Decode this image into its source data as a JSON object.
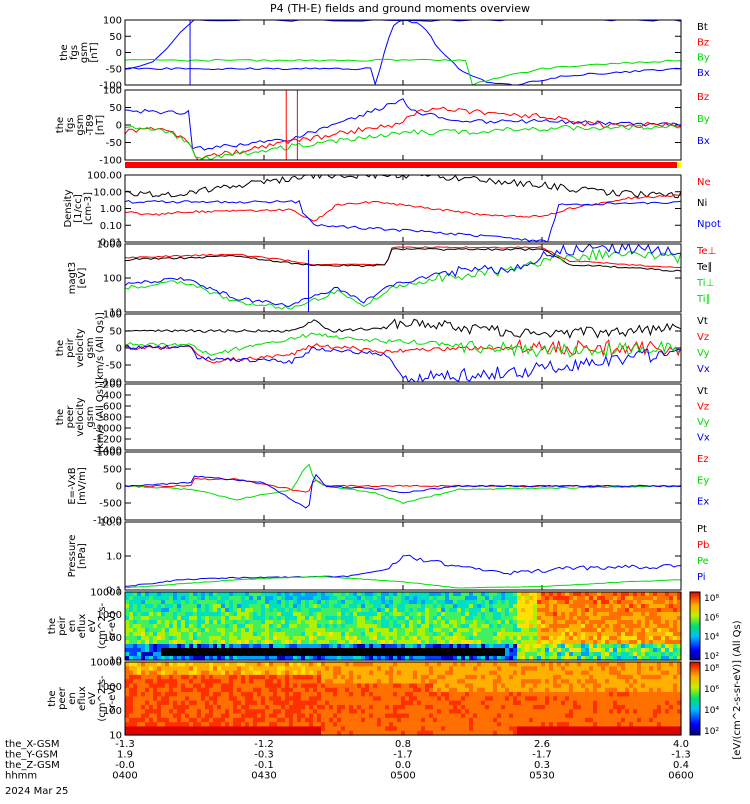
{
  "title": "P4 (TH-E) fields and ground moments overview",
  "colors": {
    "black": "#000000",
    "red": "#ff0000",
    "green": "#00dd00",
    "blue": "#0000ff"
  },
  "panels": [
    {
      "id": "fgs",
      "ylabel": [
        "the",
        "fgs",
        "gsm",
        "[nT]"
      ],
      "yticks": [
        "100",
        "50",
        "0",
        "-50",
        "-100"
      ],
      "legend": [
        {
          "text": "Bt",
          "color": "#000000"
        },
        {
          "text": "Bz",
          "color": "#ff0000"
        },
        {
          "text": "By",
          "color": "#00dd00"
        },
        {
          "text": "Bx",
          "color": "#0000ff"
        }
      ]
    },
    {
      "id": "fgs_dc",
      "ylabel": [
        "the",
        "fgs",
        "gsm",
        "-T89",
        "[nT]"
      ],
      "yticks": [
        "100",
        "50",
        "0",
        "-50",
        "-100"
      ],
      "legend": [
        {
          "text": "Bz",
          "color": "#ff0000"
        },
        {
          "text": "By",
          "color": "#00dd00"
        },
        {
          "text": "Bx",
          "color": "#0000ff"
        }
      ]
    },
    {
      "id": "density",
      "ylabel": [
        "Density",
        "[1/cc]",
        "[cm-3]"
      ],
      "yticks": [
        "100.00",
        "10.00",
        "1.00",
        "0.10",
        "0.01"
      ],
      "legend": [
        {
          "text": "Ne",
          "color": "#ff0000"
        },
        {
          "text": "Ni",
          "color": "#000000"
        },
        {
          "text": "Npot",
          "color": "#0000ff"
        }
      ]
    },
    {
      "id": "temp",
      "ylabel": [
        "magt3",
        "[eV]"
      ],
      "yticks": [
        "1000",
        "100",
        "10"
      ],
      "legend": [
        {
          "text": "Te⊥",
          "color": "#ff0000"
        },
        {
          "text": "Te∥",
          "color": "#000000"
        },
        {
          "text": "Ti⊥",
          "color": "#00dd00"
        },
        {
          "text": "Ti∥",
          "color": "#00dd00"
        }
      ]
    },
    {
      "id": "peir_vel",
      "ylabel": [
        "the",
        "peir",
        "velocity",
        "gsm",
        "[km/s (All Qs)]"
      ],
      "yticks": [
        "100",
        "50",
        "0",
        "-50",
        "-100"
      ],
      "legend": [
        {
          "text": "Vt",
          "color": "#000000"
        },
        {
          "text": "Vz",
          "color": "#ff0000"
        },
        {
          "text": "Vy",
          "color": "#00dd00"
        },
        {
          "text": "Vx",
          "color": "#0000ff"
        }
      ]
    },
    {
      "id": "peer_vel",
      "ylabel": [
        "the",
        "peer",
        "velocity",
        "gsm",
        "[km/s (All Qs)]"
      ],
      "yticks": [
        "-200",
        "-400",
        "-600",
        "-800",
        "-1000",
        "-1200",
        "-1400"
      ],
      "legend": [
        {
          "text": "Vt",
          "color": "#000000"
        },
        {
          "text": "Vz",
          "color": "#ff0000"
        },
        {
          "text": "Vy",
          "color": "#00dd00"
        },
        {
          "text": "Vx",
          "color": "#0000ff"
        }
      ]
    },
    {
      "id": "efield",
      "ylabel": [
        "E=-VxB",
        "[mV/m]"
      ],
      "yticks": [
        "1000",
        "500",
        "0",
        "-500",
        "-1000"
      ],
      "legend": [
        {
          "text": "Ez",
          "color": "#ff0000"
        },
        {
          "text": "Ey",
          "color": "#00dd00"
        },
        {
          "text": "Ex",
          "color": "#0000ff"
        }
      ]
    },
    {
      "id": "pressure",
      "ylabel": [
        "Pressure",
        "[nPa]"
      ],
      "yticks": [
        "10.0",
        "1.0",
        "0.1"
      ],
      "legend": [
        {
          "text": "Pt",
          "color": "#000000"
        },
        {
          "text": "Pb",
          "color": "#ff0000"
        },
        {
          "text": "Pe",
          "color": "#00dd00"
        },
        {
          "text": "Pi",
          "color": "#0000ff"
        }
      ]
    },
    {
      "id": "peir_en",
      "ylabel": [
        "the",
        "peir",
        "en",
        "eflux",
        "eV",
        "(cm^2-s-",
        "sr-eV)"
      ],
      "yticks": [
        "10000",
        "1000",
        "100",
        "10"
      ]
    },
    {
      "id": "peer_en",
      "ylabel": [
        "the",
        "peer",
        "en",
        "eflux",
        "eV",
        "(cm^2-s-",
        "sr-eV)"
      ],
      "yticks": [
        "10000",
        "1000",
        "100",
        "10"
      ]
    }
  ],
  "colorbar": {
    "label": "[eV/(cm^2-s-sr-eV)] (All Qs)",
    "ticks": [
      [
        "10⁸",
        "10⁶",
        "10⁴",
        "10²"
      ],
      [
        "10⁸",
        "10⁶",
        "10⁴",
        "10²"
      ]
    ]
  },
  "xaxis": {
    "rows": [
      {
        "label": "the_X-GSM",
        "values": [
          "-1.3",
          "-1.2",
          "0.8",
          "2.6",
          "4.0"
        ]
      },
      {
        "label": "the_Y-GSM",
        "values": [
          "1.9",
          "-0.3",
          "-1.7",
          "-1.7",
          "-1.3"
        ]
      },
      {
        "label": "the_Z-GSM",
        "values": [
          "-0.0",
          "-0.1",
          "0.0",
          "0.3",
          "0.4"
        ]
      },
      {
        "label": "hhmm",
        "values": [
          "0400",
          "0430",
          "0500",
          "0530",
          "0600"
        ]
      }
    ],
    "date": "2024 Mar 25"
  },
  "chart_data": [
    {
      "type": "line",
      "title": "P4 (TH-E) fields and ground moments overview",
      "x": [
        "0400",
        "0430",
        "0500",
        "0530",
        "0600"
      ],
      "ylabel": "the fgs gsm [nT]",
      "ylim": [
        -100,
        100
      ],
      "series": [
        {
          "name": "Bt"
        },
        {
          "name": "Bz"
        },
        {
          "name": "By"
        },
        {
          "name": "Bx"
        }
      ]
    },
    {
      "type": "line",
      "x": [
        "0400",
        "0430",
        "0500",
        "0530",
        "0600"
      ],
      "ylabel": "the fgs gsm -T89 [nT]",
      "ylim": [
        -100,
        100
      ],
      "series": [
        {
          "name": "Bz"
        },
        {
          "name": "By"
        },
        {
          "name": "Bx"
        }
      ]
    },
    {
      "type": "line",
      "x": [
        "0400",
        "0430",
        "0500",
        "0530",
        "0600"
      ],
      "ylabel": "Density [1/cc] [cm-3]",
      "ylim": [
        0.01,
        100
      ],
      "series": [
        {
          "name": "Ne"
        },
        {
          "name": "Ni"
        },
        {
          "name": "Npot"
        }
      ]
    },
    {
      "type": "line",
      "x": [
        "0400",
        "0430",
        "0500",
        "0530",
        "0600"
      ],
      "ylabel": "magt3 [eV]",
      "ylim": [
        10,
        1000
      ],
      "series": [
        {
          "name": "Te⊥"
        },
        {
          "name": "Te∥"
        },
        {
          "name": "Ti⊥"
        },
        {
          "name": "Ti∥"
        }
      ]
    },
    {
      "type": "line",
      "x": [
        "0400",
        "0430",
        "0500",
        "0530",
        "0600"
      ],
      "ylabel": "the peir velocity gsm [km/s (All Qs)]",
      "ylim": [
        -100,
        100
      ],
      "series": [
        {
          "name": "Vt"
        },
        {
          "name": "Vz"
        },
        {
          "name": "Vy"
        },
        {
          "name": "Vx"
        }
      ]
    },
    {
      "type": "line",
      "x": [
        "0400",
        "0430",
        "0500",
        "0530",
        "0600"
      ],
      "ylabel": "the peer velocity gsm [km/s (All Qs)]",
      "ylim": [
        -1400,
        -200
      ],
      "series": []
    },
    {
      "type": "line",
      "x": [
        "0400",
        "0430",
        "0500",
        "0530",
        "0600"
      ],
      "ylabel": "E=-VxB [mV/m]",
      "ylim": [
        -1000,
        1000
      ],
      "series": [
        {
          "name": "Ez"
        },
        {
          "name": "Ey"
        },
        {
          "name": "Ex"
        }
      ]
    },
    {
      "type": "line",
      "x": [
        "0400",
        "0430",
        "0500",
        "0530",
        "0600"
      ],
      "ylabel": "Pressure [nPa]",
      "ylim": [
        0.1,
        10
      ],
      "series": [
        {
          "name": "Pt"
        },
        {
          "name": "Pb"
        },
        {
          "name": "Pe"
        },
        {
          "name": "Pi"
        }
      ]
    },
    {
      "type": "heatmap",
      "x": [
        "0400",
        "0430",
        "0500",
        "0530",
        "0600"
      ],
      "ylabel": "the peir en eflux",
      "yrange": [
        10,
        10000
      ]
    },
    {
      "type": "heatmap",
      "x": [
        "0400",
        "0430",
        "0500",
        "0530",
        "0600"
      ],
      "ylabel": "the peer en eflux",
      "yrange": [
        10,
        10000
      ]
    }
  ]
}
